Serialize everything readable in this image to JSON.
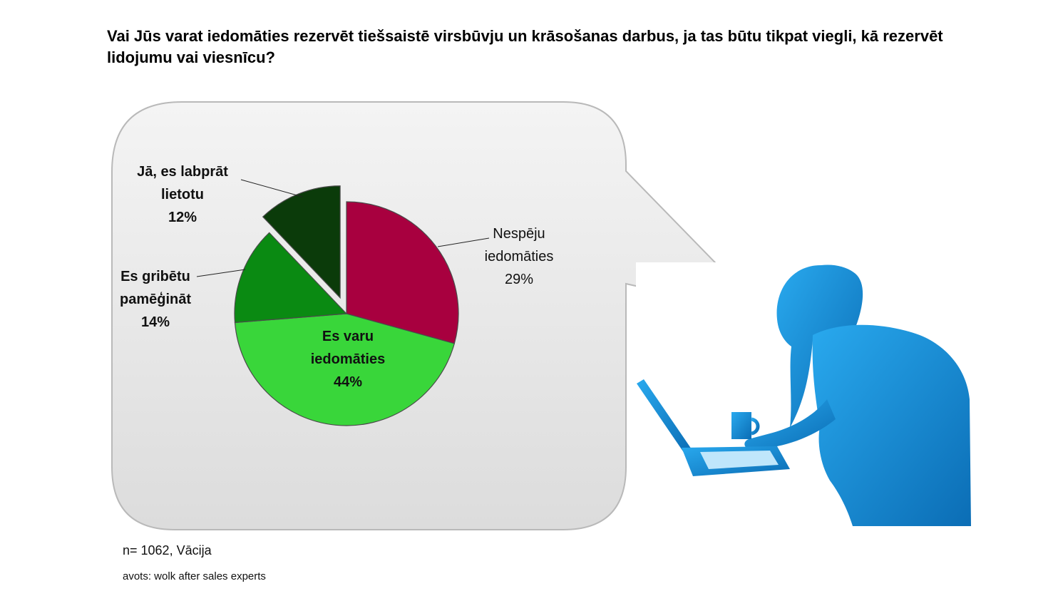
{
  "title": "Vai Jūs varat iedomāties rezervēt tiešsaistē virsbūvju un krāsošanas darbus, ja tas būtu tikpat viegli, kā rezervēt lidojumu  vai viesnīcu?",
  "notes": {
    "sample": "n= 1062, Vācija",
    "source": "avots: wolk after sales experts"
  },
  "colors": {
    "slice_nespeju": "#a8003f",
    "slice_es_varu": "#39d63a",
    "slice_gribetu": "#0a8a12",
    "slice_ja": "#0b3b0a",
    "bubble_fill": "#e6e6e6",
    "person": "#1f8fd6"
  },
  "chart_data": {
    "type": "pie",
    "title": "",
    "start_angle_deg": 0,
    "exploded": [
      "Jā, es labprāt lietotu"
    ],
    "slices": [
      {
        "label_lines": [
          "Nespēju",
          "iedomāties"
        ],
        "pct_label": "29%",
        "value": 29,
        "color": "#a8003f"
      },
      {
        "label_lines": [
          "Es varu",
          "iedomāties"
        ],
        "pct_label": "44%",
        "value": 44,
        "color": "#39d63a"
      },
      {
        "label_lines": [
          "Es gribētu",
          "pamēģināt"
        ],
        "pct_label": "14%",
        "value": 14,
        "color": "#0a8a12"
      },
      {
        "label_lines": [
          "Jā, es labprāt",
          "lietotu"
        ],
        "pct_label": "12%",
        "value": 12,
        "color": "#0b3b0a"
      }
    ]
  }
}
